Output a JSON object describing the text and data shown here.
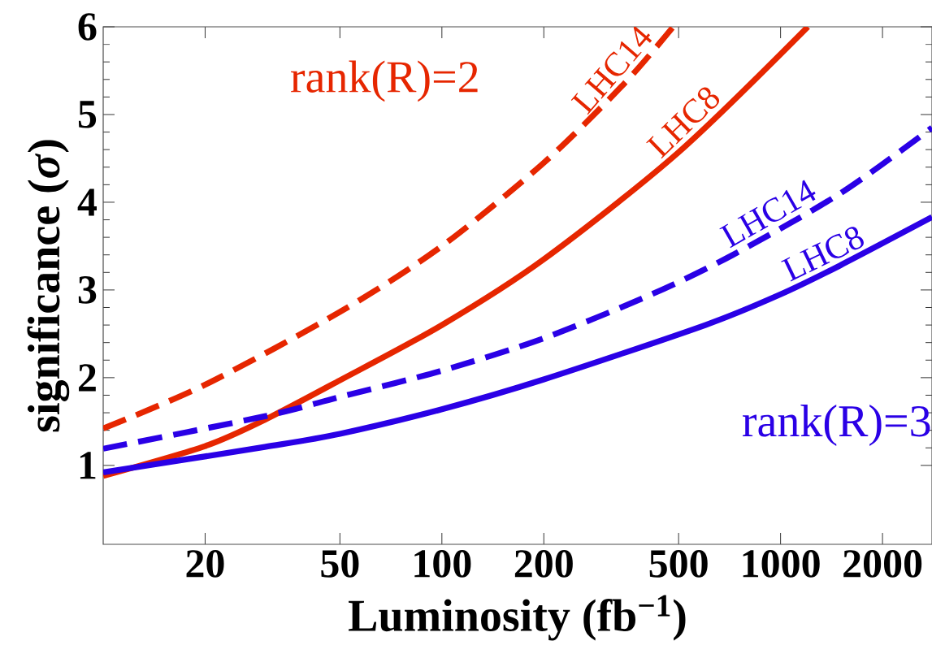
{
  "chart_data": {
    "type": "line",
    "xlabel": "Luminosity (fb$^{−1}$)",
    "ylabel": "significance (*σ*)",
    "log": "x",
    "xlim": [
      10,
      2800
    ],
    "ylim": [
      0.1,
      6
    ],
    "xticks": [
      20,
      50,
      100,
      200,
      500,
      1000,
      2000
    ],
    "yticks": [
      1,
      2,
      3,
      4,
      5,
      6
    ],
    "annotations": [
      "rank(R)=2",
      "rank(R)=3"
    ],
    "series": [
      {
        "name": "LHC14",
        "color": "#e62600",
        "line_style": "dashed",
        "x": [
          10,
          20,
          50,
          100,
          200,
          345,
          482
        ],
        "values": [
          1.42,
          1.92,
          2.75,
          3.5,
          4.45,
          5.35,
          6.0
        ]
      },
      {
        "name": "LHC8",
        "color": "#e62600",
        "line_style": "solid",
        "x": [
          10,
          20,
          30,
          50,
          100,
          200,
          500,
          1204
        ],
        "values": [
          0.88,
          1.22,
          1.52,
          1.97,
          2.6,
          3.35,
          4.57,
          6.0
        ]
      },
      {
        "name": "LHC14",
        "color": "#2a00e6",
        "line_style": "dashed",
        "x": [
          10,
          30,
          50,
          100,
          200,
          416,
          723,
          1500,
          2800
        ],
        "values": [
          1.19,
          1.56,
          1.78,
          2.08,
          2.45,
          2.95,
          3.4,
          4.1,
          4.85
        ]
      },
      {
        "name": "LHC8",
        "color": "#2a00e6",
        "line_style": "solid",
        "x": [
          10,
          30,
          50,
          100,
          200,
          600,
          1000,
          1500,
          2800
        ],
        "values": [
          0.92,
          1.21,
          1.36,
          1.64,
          1.98,
          2.6,
          2.95,
          3.28,
          3.83
        ]
      }
    ]
  }
}
